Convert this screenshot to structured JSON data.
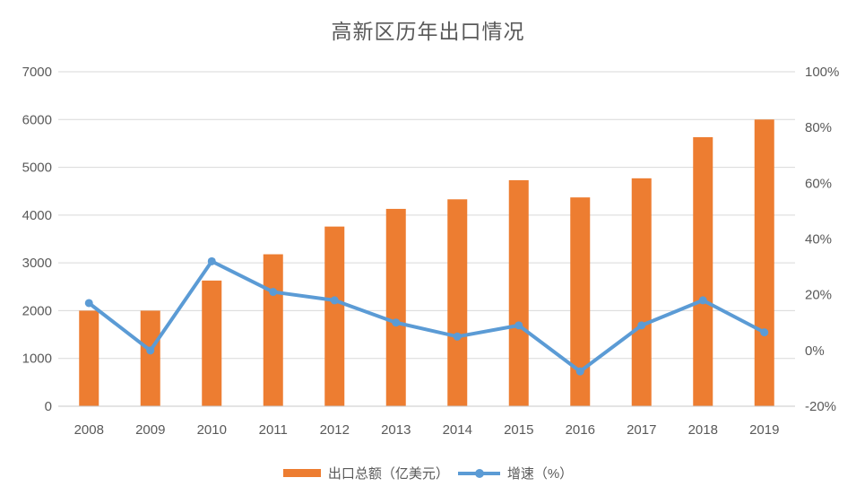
{
  "chart_data": {
    "type": "combo",
    "title": "高新区历年出口情况",
    "categories": [
      "2008",
      "2009",
      "2010",
      "2011",
      "2012",
      "2013",
      "2014",
      "2015",
      "2016",
      "2017",
      "2018",
      "2019"
    ],
    "series": [
      {
        "name": "出口总额（亿美元）",
        "type": "bar",
        "axis": "left",
        "color": "#ED7D31",
        "values": [
          2000,
          2000,
          2630,
          3180,
          3760,
          4130,
          4330,
          4730,
          4370,
          4770,
          5630,
          6000
        ]
      },
      {
        "name": "增速（%）",
        "type": "line",
        "axis": "right",
        "color": "#5B9BD5",
        "values": [
          17,
          0,
          32,
          21,
          18,
          10,
          5,
          9,
          -7.5,
          9,
          18,
          6.5
        ]
      }
    ],
    "left_axis": {
      "min": 0,
      "max": 7000,
      "step": 1000,
      "tick_labels": [
        "0",
        "1000",
        "2000",
        "3000",
        "4000",
        "5000",
        "6000",
        "7000"
      ]
    },
    "right_axis": {
      "min": -20,
      "max": 100,
      "step": 20,
      "tick_labels": [
        "-20%",
        "0%",
        "20%",
        "40%",
        "60%",
        "80%",
        "100%"
      ]
    },
    "grid": true,
    "legend_position": "bottom",
    "colors": {
      "bar": "#ED7D31",
      "line": "#5B9BD5",
      "gridline": "#D9D9D9",
      "axis_line": "#C9C9C9",
      "text": "#595959",
      "title": "#595959"
    }
  }
}
